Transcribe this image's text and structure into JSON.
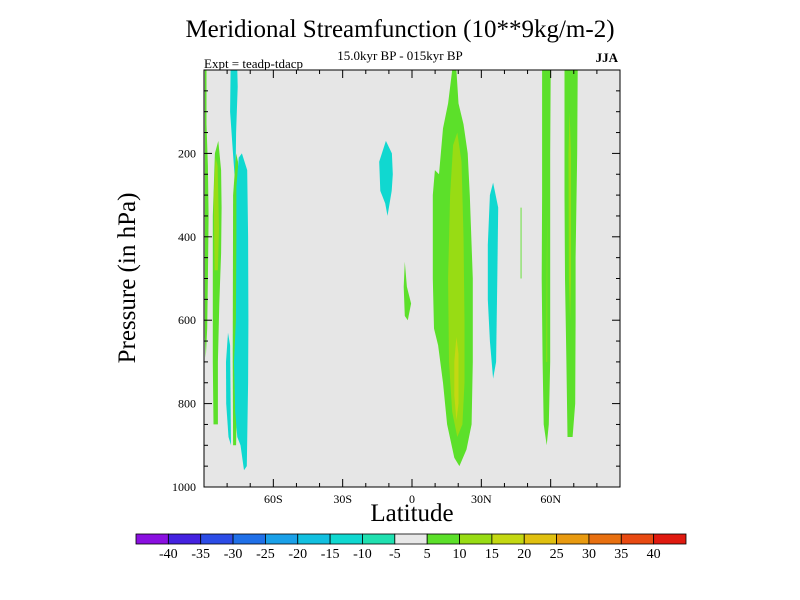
{
  "chart_data": {
    "type": "heatmap",
    "title": "Meridional Streamfunction (10**9kg/m-2)",
    "subtitle": "15.0kyr BP - 015kyr BP",
    "left_label": "Expt = teadp-tdacp",
    "right_label": "JJA",
    "xlabel": "Latitude",
    "ylabel": "Pressure (in hPa)",
    "xlim": [
      -90,
      90
    ],
    "ylim": [
      0,
      1000
    ],
    "y_inverted": true,
    "x_ticks": [
      {
        "value": -60,
        "label": "60S"
      },
      {
        "value": -30,
        "label": "30S"
      },
      {
        "value": 0,
        "label": "0"
      },
      {
        "value": 30,
        "label": "30N"
      },
      {
        "value": 60,
        "label": "60N"
      }
    ],
    "y_ticks": [
      {
        "value": 200,
        "label": "200"
      },
      {
        "value": 400,
        "label": "400"
      },
      {
        "value": 600,
        "label": "600"
      },
      {
        "value": 800,
        "label": "800"
      },
      {
        "value": 1000,
        "label": "1000"
      }
    ],
    "background_color": "#e6e6e6",
    "colorbar": {
      "levels": [
        "-40",
        "-35",
        "-30",
        "-25",
        "-20",
        "-15",
        "-10",
        "-5",
        "5",
        "10",
        "15",
        "20",
        "25",
        "30",
        "35",
        "40"
      ],
      "colors": [
        "#8a10e0",
        "#4422e0",
        "#2c4ce6",
        "#2070e8",
        "#1aa0e8",
        "#12c0e0",
        "#10d8d0",
        "#20e0b0",
        "#e8e8e8",
        "#5ce02a",
        "#98dc14",
        "#c4d812",
        "#e0c010",
        "#e89a10",
        "#e87010",
        "#e84a12",
        "#e01a10"
      ]
    },
    "regions": [
      {
        "label": "+5..+10",
        "color": "#5ce02a",
        "points": [
          [
            -89.6,
            0
          ],
          [
            -88.9,
            0
          ],
          [
            -88.9,
            130
          ],
          [
            -88.3,
            230
          ],
          [
            -88.0,
            350
          ],
          [
            -88.3,
            500
          ],
          [
            -88.6,
            620
          ],
          [
            -89.2,
            690
          ],
          [
            -89.6,
            640
          ]
        ]
      },
      {
        "label": "+5..+10",
        "color": "#5ce02a",
        "points": [
          [
            -86.2,
            350
          ],
          [
            -85.3,
            200
          ],
          [
            -83.8,
            170
          ],
          [
            -82.6,
            240
          ],
          [
            -82.4,
            330
          ],
          [
            -82.6,
            440
          ],
          [
            -83.4,
            560
          ],
          [
            -84.0,
            700
          ],
          [
            -84.0,
            850
          ],
          [
            -85.9,
            850
          ],
          [
            -86.2,
            700
          ]
        ]
      },
      {
        "label": "+10..+15",
        "color": "#98dc14",
        "points": [
          [
            -85.8,
            300
          ],
          [
            -85.0,
            210
          ],
          [
            -84.1,
            230
          ],
          [
            -83.5,
            380
          ],
          [
            -84.0,
            480
          ],
          [
            -85.4,
            480
          ]
        ]
      },
      {
        "label": "-10..-5",
        "color": "#10d8d0",
        "points": [
          [
            -78.5,
            0
          ],
          [
            -75.6,
            0
          ],
          [
            -75.4,
            40
          ],
          [
            -76.1,
            150
          ],
          [
            -76.4,
            280
          ],
          [
            -77.6,
            190
          ],
          [
            -78.7,
            100
          ]
        ]
      },
      {
        "label": "+5..+10",
        "color": "#5ce02a",
        "points": [
          [
            -77.4,
            300
          ],
          [
            -76.1,
            200
          ],
          [
            -75.3,
            220
          ],
          [
            -75.2,
            400
          ],
          [
            -75.4,
            600
          ],
          [
            -75.8,
            800
          ],
          [
            -76.1,
            900
          ],
          [
            -77.4,
            900
          ],
          [
            -77.6,
            700
          ]
        ]
      },
      {
        "label": "-10..-5",
        "color": "#10d8d0",
        "points": [
          [
            -76.0,
            280
          ],
          [
            -75.0,
            210
          ],
          [
            -73.6,
            200
          ],
          [
            -71.3,
            240
          ],
          [
            -70.9,
            400
          ],
          [
            -70.8,
            600
          ],
          [
            -70.9,
            750
          ],
          [
            -71.5,
            950
          ],
          [
            -72.7,
            960
          ],
          [
            -74.2,
            900
          ],
          [
            -75.6,
            880
          ],
          [
            -76.5,
            820
          ],
          [
            -77.0,
            700
          ],
          [
            -76.2,
            600
          ],
          [
            -76.0,
            400
          ]
        ]
      },
      {
        "label": "-10..-5",
        "color": "#10d8d0",
        "points": [
          [
            -80.5,
            700
          ],
          [
            -79.6,
            630
          ],
          [
            -78.7,
            660
          ],
          [
            -78.3,
            900
          ],
          [
            -79.4,
            880
          ],
          [
            -80.4,
            800
          ]
        ]
      },
      {
        "label": "-10..-5",
        "color": "#10d8d0",
        "points": [
          [
            -14.2,
            220
          ],
          [
            -11.3,
            170
          ],
          [
            -8.7,
            200
          ],
          [
            -8.3,
            250
          ],
          [
            -8.8,
            290
          ],
          [
            -9.7,
            320
          ],
          [
            -10.6,
            350
          ],
          [
            -11.6,
            320
          ],
          [
            -13.7,
            290
          ]
        ]
      },
      {
        "label": "+5..+10",
        "color": "#5ce02a",
        "points": [
          [
            -3.6,
            520
          ],
          [
            -3.1,
            460
          ],
          [
            -2.2,
            520
          ],
          [
            -0.4,
            560
          ],
          [
            -1.8,
            600
          ],
          [
            -3.1,
            590
          ]
        ]
      },
      {
        "label": "+5..+10",
        "color": "#5ce02a",
        "points": [
          [
            9.0,
            300
          ],
          [
            9.9,
            240
          ],
          [
            11.7,
            250
          ],
          [
            13.4,
            140
          ],
          [
            15.6,
            80
          ],
          [
            17.4,
            0
          ],
          [
            19.2,
            0
          ],
          [
            20.1,
            80
          ],
          [
            22.3,
            130
          ],
          [
            24.1,
            200
          ],
          [
            25.0,
            300
          ],
          [
            26.3,
            500
          ],
          [
            26.3,
            700
          ],
          [
            25.8,
            850
          ],
          [
            23.6,
            910
          ],
          [
            20.5,
            950
          ],
          [
            18.3,
            930
          ],
          [
            15.2,
            850
          ],
          [
            13.4,
            750
          ],
          [
            11.3,
            660
          ],
          [
            9.5,
            620
          ],
          [
            9.0,
            500
          ]
        ]
      },
      {
        "label": "+10..+15",
        "color": "#98dc14",
        "points": [
          [
            15.6,
            500
          ],
          [
            16.5,
            300
          ],
          [
            17.8,
            180
          ],
          [
            19.6,
            150
          ],
          [
            21.4,
            220
          ],
          [
            22.3,
            400
          ],
          [
            22.7,
            600
          ],
          [
            22.7,
            750
          ],
          [
            21.8,
            850
          ],
          [
            19.6,
            880
          ],
          [
            17.4,
            820
          ],
          [
            16.0,
            700
          ]
        ]
      },
      {
        "label": "+15..+20",
        "color": "#c4d812",
        "points": [
          [
            18.3,
            700
          ],
          [
            19.2,
            640
          ],
          [
            20.1,
            680
          ],
          [
            20.1,
            800
          ],
          [
            19.2,
            840
          ],
          [
            18.3,
            780
          ]
        ]
      },
      {
        "label": "-10..-5",
        "color": "#10d8d0",
        "points": [
          [
            32.8,
            420
          ],
          [
            33.7,
            300
          ],
          [
            35.1,
            270
          ],
          [
            37.3,
            330
          ],
          [
            36.9,
            500
          ],
          [
            36.4,
            700
          ],
          [
            35.1,
            740
          ],
          [
            33.7,
            650
          ],
          [
            32.8,
            550
          ]
        ]
      },
      {
        "label": "+5..+10",
        "color": "#5ce02a",
        "points": [
          [
            47.0,
            330
          ],
          [
            47.4,
            330
          ],
          [
            47.4,
            500
          ],
          [
            47.0,
            500
          ]
        ]
      },
      {
        "label": "+5..+10",
        "color": "#5ce02a",
        "points": [
          [
            56.3,
            0
          ],
          [
            60.0,
            0
          ],
          [
            59.8,
            200
          ],
          [
            59.8,
            500
          ],
          [
            59.8,
            700
          ],
          [
            59.2,
            850
          ],
          [
            58.3,
            900
          ],
          [
            57.0,
            850
          ],
          [
            56.5,
            700
          ],
          [
            56.1,
            500
          ],
          [
            56.3,
            300
          ]
        ]
      },
      {
        "label": "+10..+15",
        "color": "#98dc14",
        "points": [
          [
            58.3,
            500
          ],
          [
            58.5,
            330
          ],
          [
            58.5,
            700
          ],
          [
            58.1,
            700
          ]
        ]
      },
      {
        "label": "+5..+10",
        "color": "#5ce02a",
        "points": [
          [
            66.0,
            0
          ],
          [
            71.7,
            0
          ],
          [
            71.5,
            200
          ],
          [
            70.8,
            450
          ],
          [
            70.8,
            600
          ],
          [
            70.6,
            800
          ],
          [
            69.5,
            880
          ],
          [
            67.3,
            880
          ],
          [
            66.8,
            700
          ],
          [
            66.2,
            500
          ],
          [
            66.0,
            300
          ]
        ]
      },
      {
        "label": "+10..+15",
        "color": "#98dc14",
        "points": [
          [
            67.7,
            200
          ],
          [
            68.2,
            100
          ],
          [
            68.8,
            200
          ],
          [
            68.8,
            500
          ],
          [
            68.4,
            600
          ],
          [
            67.9,
            500
          ]
        ]
      }
    ]
  }
}
